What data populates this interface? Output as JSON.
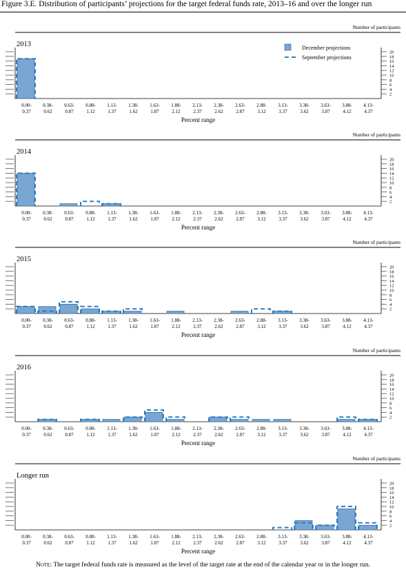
{
  "figure_title": "Figure 3.E. Distribution of participants’ projections for the target federal funds rate, 2013–16 and over the longer run",
  "note_prefix": "Note:",
  "note_text": "The target federal funds rate is measured as the level of the target rate at the end of the calendar year or in the longer run.",
  "colors": {
    "bar_fill": "#79a6d2",
    "bar_stroke": "#4a6f95",
    "dashed": "#2a7fc4",
    "axis": "#000000"
  },
  "chart_data": [
    {
      "type": "bar",
      "panel": "2013",
      "y_axis_title": "Number of participants",
      "xlabel": "Percent range",
      "ylim": [
        0,
        20
      ],
      "yticks": [
        2,
        4,
        6,
        8,
        10,
        12,
        14,
        16,
        18,
        20
      ],
      "categories": [
        [
          "0.00-",
          "0.37"
        ],
        [
          "0.38-",
          "0.62"
        ],
        [
          "0.63-",
          "0.87"
        ],
        [
          "0.88-",
          "1.12"
        ],
        [
          "1.13-",
          "1.37"
        ],
        [
          "1.38-",
          "1.62"
        ],
        [
          "1.63-",
          "1.87"
        ],
        [
          "1.88-",
          "2.12"
        ],
        [
          "2.13-",
          "2.37"
        ],
        [
          "2.38-",
          "2.62"
        ],
        [
          "2.63-",
          "2.87"
        ],
        [
          "2.88-",
          "3.12"
        ],
        [
          "3.13-",
          "3.37"
        ],
        [
          "3.38-",
          "3.62"
        ],
        [
          "3.63-",
          "3.87"
        ],
        [
          "3.88-",
          "4.12"
        ],
        [
          "4.13-",
          "4.37"
        ]
      ],
      "legend": [
        "December projections",
        "September projections"
      ],
      "legend_position": "top-right",
      "series": [
        {
          "name": "December projections",
          "style": "bar",
          "values": [
            17,
            0,
            0,
            0,
            0,
            0,
            0,
            0,
            0,
            0,
            0,
            0,
            0,
            0,
            0,
            0,
            0
          ]
        },
        {
          "name": "September projections",
          "style": "dashed",
          "values": [
            17,
            0,
            0,
            0,
            0,
            0,
            0,
            0,
            0,
            0,
            0,
            0,
            0,
            0,
            0,
            0,
            0
          ]
        }
      ]
    },
    {
      "type": "bar",
      "panel": "2014",
      "y_axis_title": "Number of participants",
      "xlabel": "Percent range",
      "ylim": [
        0,
        20
      ],
      "yticks": [
        2,
        4,
        6,
        8,
        10,
        12,
        14,
        16,
        18,
        20
      ],
      "categories": [
        [
          "0.00-",
          "0.37"
        ],
        [
          "0.38-",
          "0.62"
        ],
        [
          "0.63-",
          "0.87"
        ],
        [
          "0.88-",
          "1.12"
        ],
        [
          "1.13-",
          "1.37"
        ],
        [
          "1.38-",
          "1.62"
        ],
        [
          "1.63-",
          "1.87"
        ],
        [
          "1.88-",
          "2.12"
        ],
        [
          "2.13-",
          "2.37"
        ],
        [
          "2.38-",
          "2.62"
        ],
        [
          "2.63-",
          "2.87"
        ],
        [
          "2.88-",
          "3.12"
        ],
        [
          "3.13-",
          "3.37"
        ],
        [
          "3.38-",
          "3.62"
        ],
        [
          "3.63-",
          "3.87"
        ],
        [
          "3.88-",
          "4.12"
        ],
        [
          "4.13-",
          "4.37"
        ]
      ],
      "series": [
        {
          "name": "December projections",
          "style": "bar",
          "values": [
            14,
            0,
            1,
            0,
            1,
            0,
            0,
            0,
            0,
            0,
            0,
            0,
            0,
            0,
            0,
            0,
            0
          ]
        },
        {
          "name": "September projections",
          "style": "dashed",
          "values": [
            14,
            0,
            0,
            2,
            1,
            0,
            0,
            0,
            0,
            0,
            0,
            0,
            0,
            0,
            0,
            0,
            0
          ]
        }
      ]
    },
    {
      "type": "bar",
      "panel": "2015",
      "y_axis_title": "Number of participants",
      "xlabel": "Percent range",
      "ylim": [
        0,
        20
      ],
      "yticks": [
        2,
        4,
        6,
        8,
        10,
        12,
        14,
        16,
        18,
        20
      ],
      "categories": [
        [
          "0.00-",
          "0.37"
        ],
        [
          "0.38-",
          "0.62"
        ],
        [
          "0.63-",
          "0.87"
        ],
        [
          "0.88-",
          "1.12"
        ],
        [
          "1.13-",
          "1.37"
        ],
        [
          "1.38-",
          "1.62"
        ],
        [
          "1.63-",
          "1.87"
        ],
        [
          "1.88-",
          "2.12"
        ],
        [
          "2.13-",
          "2.37"
        ],
        [
          "2.38-",
          "2.62"
        ],
        [
          "2.63-",
          "2.87"
        ],
        [
          "2.88-",
          "3.12"
        ],
        [
          "3.13-",
          "3.37"
        ],
        [
          "3.38-",
          "3.62"
        ],
        [
          "3.63-",
          "3.87"
        ],
        [
          "3.88-",
          "4.12"
        ],
        [
          "4.13-",
          "4.37"
        ]
      ],
      "series": [
        {
          "name": "December projections",
          "style": "bar",
          "values": [
            3,
            3,
            4,
            2,
            1,
            1,
            0,
            1,
            0,
            0,
            1,
            0,
            1,
            0,
            0,
            0,
            0
          ]
        },
        {
          "name": "September projections",
          "style": "dashed",
          "values": [
            3,
            1,
            5,
            3,
            1,
            2,
            0,
            0,
            0,
            0,
            0,
            2,
            1,
            0,
            0,
            0,
            0
          ]
        }
      ]
    },
    {
      "type": "bar",
      "panel": "2016",
      "y_axis_title": "Number of participants",
      "xlabel": "Percent range",
      "ylim": [
        0,
        20
      ],
      "yticks": [
        2,
        4,
        6,
        8,
        10,
        12,
        14,
        16,
        18,
        20
      ],
      "categories": [
        [
          "0.00-",
          "0.37"
        ],
        [
          "0.38-",
          "0.62"
        ],
        [
          "0.63-",
          "0.87"
        ],
        [
          "0.88-",
          "1.12"
        ],
        [
          "1.13-",
          "1.37"
        ],
        [
          "1.38-",
          "1.62"
        ],
        [
          "1.63-",
          "1.87"
        ],
        [
          "1.88-",
          "2.12"
        ],
        [
          "2.13-",
          "2.37"
        ],
        [
          "2.38-",
          "2.62"
        ],
        [
          "2.63-",
          "2.87"
        ],
        [
          "2.88-",
          "3.12"
        ],
        [
          "3.13-",
          "3.37"
        ],
        [
          "3.38-",
          "3.62"
        ],
        [
          "3.63-",
          "3.87"
        ],
        [
          "3.88-",
          "4.12"
        ],
        [
          "4.13-",
          "4.37"
        ]
      ],
      "series": [
        {
          "name": "December projections",
          "style": "bar",
          "values": [
            0,
            1,
            0,
            1,
            1,
            2,
            4,
            1,
            0,
            2,
            1,
            1,
            1,
            0,
            0,
            1,
            1
          ]
        },
        {
          "name": "September projections",
          "style": "dashed",
          "values": [
            0,
            1,
            0,
            1,
            0,
            2,
            5,
            2,
            0,
            2,
            2,
            0,
            0,
            0,
            0,
            2,
            1
          ]
        }
      ]
    },
    {
      "type": "bar",
      "panel": "Longer run",
      "y_axis_title": "Number of participants",
      "xlabel": "Percent range",
      "ylim": [
        0,
        20
      ],
      "yticks": [
        2,
        4,
        6,
        8,
        10,
        12,
        14,
        16,
        18,
        20
      ],
      "categories": [
        [
          "0.00-",
          "0.37"
        ],
        [
          "0.38-",
          "0.62"
        ],
        [
          "0.63-",
          "0.87"
        ],
        [
          "0.88-",
          "1.12"
        ],
        [
          "1.13-",
          "1.37"
        ],
        [
          "1.38-",
          "1.62"
        ],
        [
          "1.63-",
          "1.87"
        ],
        [
          "1.88-",
          "2.12"
        ],
        [
          "2.13-",
          "2.37"
        ],
        [
          "2.38-",
          "2.62"
        ],
        [
          "2.63-",
          "2.87"
        ],
        [
          "2.88-",
          "3.12"
        ],
        [
          "3.13-",
          "3.37"
        ],
        [
          "3.38-",
          "3.62"
        ],
        [
          "3.63-",
          "3.87"
        ],
        [
          "3.88-",
          "4.12"
        ],
        [
          "4.13-",
          "4.37"
        ]
      ],
      "series": [
        {
          "name": "December projections",
          "style": "bar",
          "values": [
            0,
            0,
            0,
            0,
            0,
            0,
            0,
            0,
            0,
            0,
            0,
            0,
            0,
            4,
            2,
            9,
            2
          ]
        },
        {
          "name": "September projections",
          "style": "dashed",
          "values": [
            0,
            0,
            0,
            0,
            0,
            0,
            0,
            0,
            0,
            0,
            0,
            0,
            1,
            3,
            2,
            10,
            3
          ]
        }
      ]
    }
  ]
}
